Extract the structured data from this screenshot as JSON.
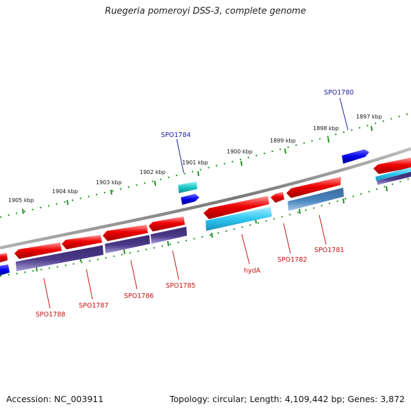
{
  "title": "Ruegeria pomeroyi DSS-3, complete genome",
  "footer": {
    "accession": "Accession: NC_003911",
    "summary": "Topology: circular; Length: 4,109,442 bp; Genes: 3,872"
  },
  "scale_labels": [
    "1897 kbp",
    "1898 kbp",
    "1899 kbp",
    "1900 kbp",
    "1901 kbp",
    "1902 kbp",
    "1903 kbp",
    "1904 kbp",
    "1905 kbp"
  ],
  "gene_labels": {
    "forward": [
      "SPO1780",
      "SPO1784"
    ],
    "reverse": [
      "SPO1781",
      "SPO1782",
      "hydA",
      "SPO1785",
      "SPO1786",
      "SPO1787",
      "SPO1788"
    ]
  },
  "colors": {
    "backbone": "#888888",
    "forward_gene": "#0000ee",
    "forward_cds": "#1cc8c8",
    "reverse_gene": "#ee0000",
    "reverse_cds_blue": "#4a86c0",
    "reverse_cds_cyan": "#2ec8f0",
    "reverse_cds_purple": "#4a3a88",
    "tick": "#1e8c1e",
    "forward_label": "#1a1aa0",
    "reverse_label": "#cc1010"
  }
}
